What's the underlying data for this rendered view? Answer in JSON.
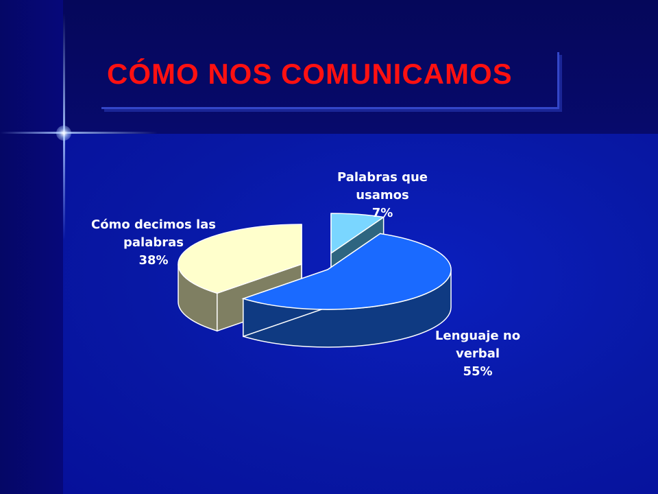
{
  "slide": {
    "title": "CÓMO NOS COMUNICAMOS"
  },
  "colors": {
    "title": "#ff1111",
    "background": "#06087a"
  },
  "chart_data": {
    "type": "pie",
    "style": "3d-exploded",
    "title": "",
    "slices": [
      {
        "label_lines": [
          "Palabras que",
          "usamos",
          "7%"
        ],
        "category": "Palabras que usamos",
        "value": 7,
        "top_color": "#7ad6ff",
        "side_color": "#2e6580"
      },
      {
        "label_lines": [
          "Lenguaje no",
          "verbal",
          "55%"
        ],
        "category": "Lenguaje no verbal",
        "value": 55,
        "top_color": "#1a6aff",
        "side_color": "#0f3a82"
      },
      {
        "label_lines": [
          "Cómo decimos las",
          "palabras",
          "38%"
        ],
        "category": "Cómo decimos las palabras",
        "value": 38,
        "top_color": "#ffffcc",
        "side_color": "#7f7f62"
      }
    ],
    "legend": "none",
    "data_labels": "category-and-percent"
  }
}
